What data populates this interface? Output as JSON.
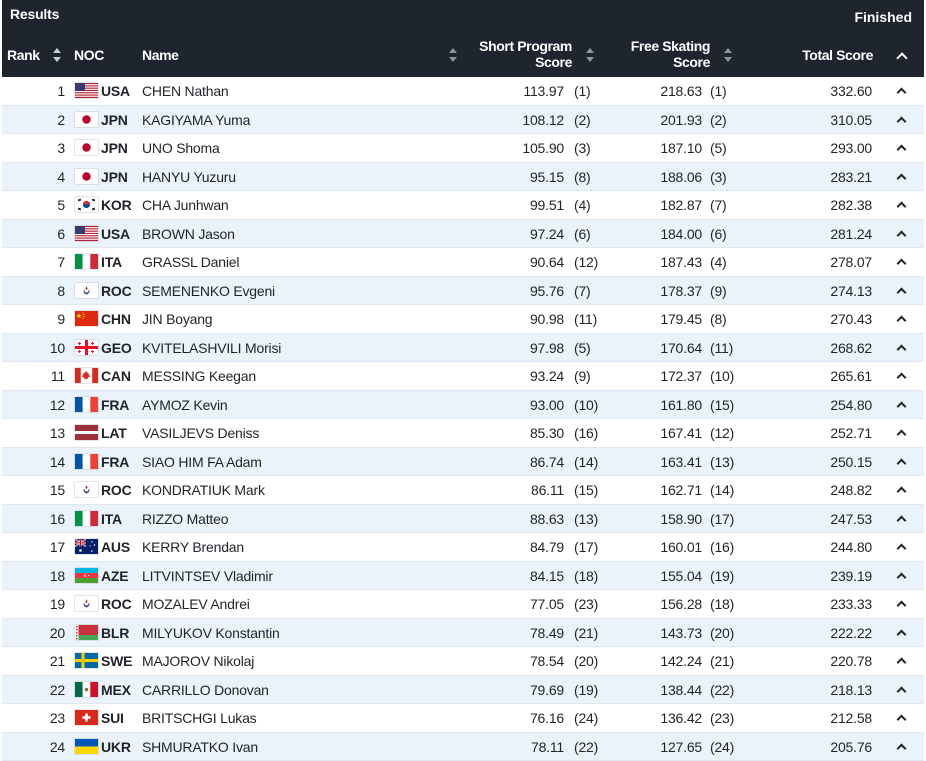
{
  "header": {
    "title": "Results",
    "status": "Finished",
    "columns": {
      "rank": "Rank",
      "noc": "NOC",
      "name": "Name",
      "short_program_1": "Short Program",
      "short_program_2": "Score",
      "free_skating_1": "Free Skating",
      "free_skating_2": "Score",
      "total_score": "Total Score"
    }
  },
  "rows": [
    {
      "rank": "1",
      "noc": "USA",
      "flag": "usa",
      "name": "CHEN Nathan",
      "sp": "113.97",
      "sp_rank": "(1)",
      "fs": "218.63",
      "fs_rank": "(1)",
      "total": "332.60"
    },
    {
      "rank": "2",
      "noc": "JPN",
      "flag": "jpn",
      "name": "KAGIYAMA Yuma",
      "sp": "108.12",
      "sp_rank": "(2)",
      "fs": "201.93",
      "fs_rank": "(2)",
      "total": "310.05"
    },
    {
      "rank": "3",
      "noc": "JPN",
      "flag": "jpn",
      "name": "UNO Shoma",
      "sp": "105.90",
      "sp_rank": "(3)",
      "fs": "187.10",
      "fs_rank": "(5)",
      "total": "293.00"
    },
    {
      "rank": "4",
      "noc": "JPN",
      "flag": "jpn",
      "name": "HANYU Yuzuru",
      "sp": "95.15",
      "sp_rank": "(8)",
      "fs": "188.06",
      "fs_rank": "(3)",
      "total": "283.21"
    },
    {
      "rank": "5",
      "noc": "KOR",
      "flag": "kor",
      "name": "CHA Junhwan",
      "sp": "99.51",
      "sp_rank": "(4)",
      "fs": "182.87",
      "fs_rank": "(7)",
      "total": "282.38"
    },
    {
      "rank": "6",
      "noc": "USA",
      "flag": "usa",
      "name": "BROWN Jason",
      "sp": "97.24",
      "sp_rank": "(6)",
      "fs": "184.00",
      "fs_rank": "(6)",
      "total": "281.24"
    },
    {
      "rank": "7",
      "noc": "ITA",
      "flag": "ita",
      "name": "GRASSL Daniel",
      "sp": "90.64",
      "sp_rank": "(12)",
      "fs": "187.43",
      "fs_rank": "(4)",
      "total": "278.07"
    },
    {
      "rank": "8",
      "noc": "ROC",
      "flag": "roc",
      "name": "SEMENENKO Evgeni",
      "sp": "95.76",
      "sp_rank": "(7)",
      "fs": "178.37",
      "fs_rank": "(9)",
      "total": "274.13"
    },
    {
      "rank": "9",
      "noc": "CHN",
      "flag": "chn",
      "name": "JIN Boyang",
      "sp": "90.98",
      "sp_rank": "(11)",
      "fs": "179.45",
      "fs_rank": "(8)",
      "total": "270.43"
    },
    {
      "rank": "10",
      "noc": "GEO",
      "flag": "geo",
      "name": "KVITELASHVILI Morisi",
      "sp": "97.98",
      "sp_rank": "(5)",
      "fs": "170.64",
      "fs_rank": "(11)",
      "total": "268.62"
    },
    {
      "rank": "11",
      "noc": "CAN",
      "flag": "can",
      "name": "MESSING Keegan",
      "sp": "93.24",
      "sp_rank": "(9)",
      "fs": "172.37",
      "fs_rank": "(10)",
      "total": "265.61"
    },
    {
      "rank": "12",
      "noc": "FRA",
      "flag": "fra",
      "name": "AYMOZ Kevin",
      "sp": "93.00",
      "sp_rank": "(10)",
      "fs": "161.80",
      "fs_rank": "(15)",
      "total": "254.80"
    },
    {
      "rank": "13",
      "noc": "LAT",
      "flag": "lat",
      "name": "VASILJEVS Deniss",
      "sp": "85.30",
      "sp_rank": "(16)",
      "fs": "167.41",
      "fs_rank": "(12)",
      "total": "252.71"
    },
    {
      "rank": "14",
      "noc": "FRA",
      "flag": "fra",
      "name": "SIAO HIM FA Adam",
      "sp": "86.74",
      "sp_rank": "(14)",
      "fs": "163.41",
      "fs_rank": "(13)",
      "total": "250.15"
    },
    {
      "rank": "15",
      "noc": "ROC",
      "flag": "roc",
      "name": "KONDRATIUK Mark",
      "sp": "86.11",
      "sp_rank": "(15)",
      "fs": "162.71",
      "fs_rank": "(14)",
      "total": "248.82"
    },
    {
      "rank": "16",
      "noc": "ITA",
      "flag": "ita",
      "name": "RIZZO Matteo",
      "sp": "88.63",
      "sp_rank": "(13)",
      "fs": "158.90",
      "fs_rank": "(17)",
      "total": "247.53"
    },
    {
      "rank": "17",
      "noc": "AUS",
      "flag": "aus",
      "name": "KERRY Brendan",
      "sp": "84.79",
      "sp_rank": "(17)",
      "fs": "160.01",
      "fs_rank": "(16)",
      "total": "244.80"
    },
    {
      "rank": "18",
      "noc": "AZE",
      "flag": "aze",
      "name": "LITVINTSEV Vladimir",
      "sp": "84.15",
      "sp_rank": "(18)",
      "fs": "155.04",
      "fs_rank": "(19)",
      "total": "239.19"
    },
    {
      "rank": "19",
      "noc": "ROC",
      "flag": "roc",
      "name": "MOZALEV Andrei",
      "sp": "77.05",
      "sp_rank": "(23)",
      "fs": "156.28",
      "fs_rank": "(18)",
      "total": "233.33"
    },
    {
      "rank": "20",
      "noc": "BLR",
      "flag": "blr",
      "name": "MILYUKOV Konstantin",
      "sp": "78.49",
      "sp_rank": "(21)",
      "fs": "143.73",
      "fs_rank": "(20)",
      "total": "222.22"
    },
    {
      "rank": "21",
      "noc": "SWE",
      "flag": "swe",
      "name": "MAJOROV Nikolaj",
      "sp": "78.54",
      "sp_rank": "(20)",
      "fs": "142.24",
      "fs_rank": "(21)",
      "total": "220.78"
    },
    {
      "rank": "22",
      "noc": "MEX",
      "flag": "mex",
      "name": "CARRILLO Donovan",
      "sp": "79.69",
      "sp_rank": "(19)",
      "fs": "138.44",
      "fs_rank": "(22)",
      "total": "218.13"
    },
    {
      "rank": "23",
      "noc": "SUI",
      "flag": "sui",
      "name": "BRITSCHGI Lukas",
      "sp": "76.16",
      "sp_rank": "(24)",
      "fs": "136.42",
      "fs_rank": "(23)",
      "total": "212.58"
    },
    {
      "rank": "24",
      "noc": "UKR",
      "flag": "ukr",
      "name": "SHMURATKO Ivan",
      "sp": "78.11",
      "sp_rank": "(22)",
      "fs": "127.65",
      "fs_rank": "(24)",
      "total": "205.76"
    }
  ]
}
